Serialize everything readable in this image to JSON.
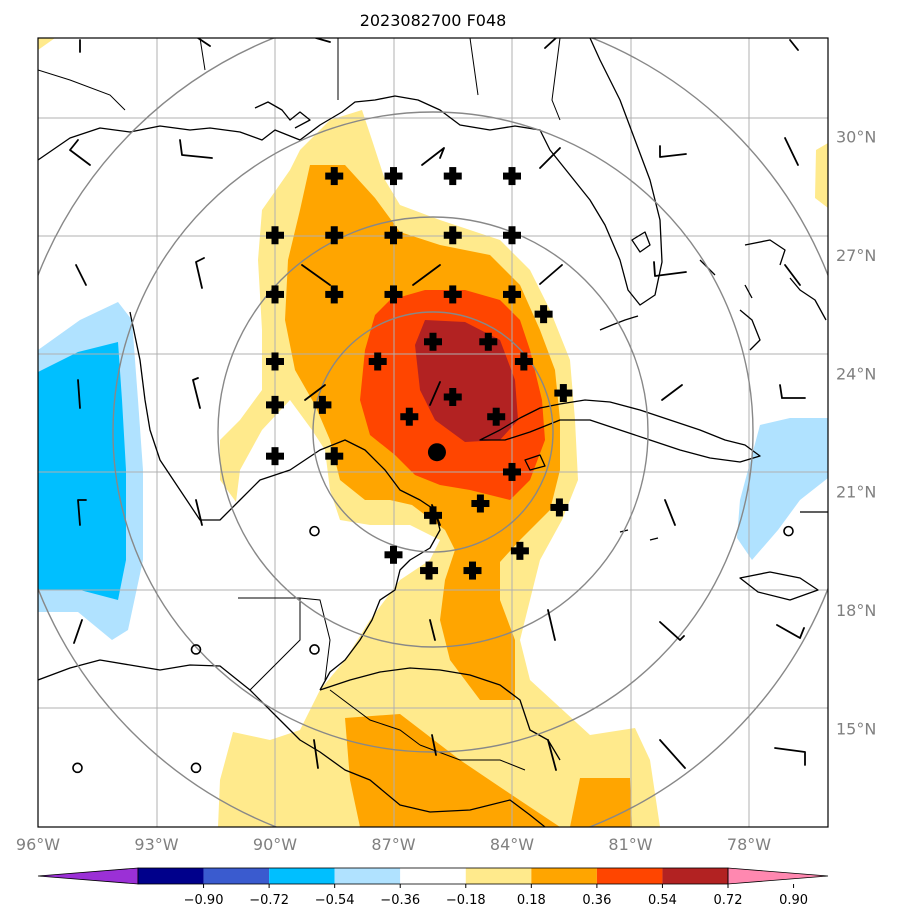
{
  "title": "2023082700 F048",
  "map": {
    "lon_range": [
      -96,
      -76
    ],
    "lat_range": [
      12.5,
      32.5
    ],
    "lon_ticks": [
      -96,
      -93,
      -90,
      -87,
      -84,
      -81,
      -78
    ],
    "lon_tick_labels": [
      "96°W",
      "93°W",
      "90°W",
      "87°W",
      "84°W",
      "81°W",
      "78°W"
    ],
    "lat_ticks": [
      15,
      18,
      21,
      24,
      27,
      30
    ],
    "lat_tick_labels": [
      "15°N",
      "18°N",
      "21°N",
      "24°N",
      "27°N",
      "30°N"
    ],
    "storm_center": {
      "lon": -85.9,
      "lat": 22.0
    },
    "significance_markers": [
      {
        "lon": -88.5,
        "lat": 29.0
      },
      {
        "lon": -87.0,
        "lat": 29.0
      },
      {
        "lon": -85.5,
        "lat": 29.0
      },
      {
        "lon": -84.0,
        "lat": 29.0
      },
      {
        "lon": -90.0,
        "lat": 27.5
      },
      {
        "lon": -88.5,
        "lat": 27.5
      },
      {
        "lon": -87.0,
        "lat": 27.5
      },
      {
        "lon": -85.5,
        "lat": 27.5
      },
      {
        "lon": -84.0,
        "lat": 27.5
      },
      {
        "lon": -90.0,
        "lat": 26.0
      },
      {
        "lon": -88.5,
        "lat": 26.0
      },
      {
        "lon": -87.0,
        "lat": 26.0
      },
      {
        "lon": -85.5,
        "lat": 26.0
      },
      {
        "lon": -84.0,
        "lat": 26.0
      },
      {
        "lon": -83.2,
        "lat": 25.5
      },
      {
        "lon": -86.0,
        "lat": 24.8
      },
      {
        "lon": -84.6,
        "lat": 24.8
      },
      {
        "lon": -90.0,
        "lat": 24.3
      },
      {
        "lon": -87.4,
        "lat": 24.3
      },
      {
        "lon": -83.7,
        "lat": 24.3
      },
      {
        "lon": -85.5,
        "lat": 23.4
      },
      {
        "lon": -82.7,
        "lat": 23.5
      },
      {
        "lon": -90.0,
        "lat": 23.2
      },
      {
        "lon": -88.8,
        "lat": 23.2
      },
      {
        "lon": -86.6,
        "lat": 22.9
      },
      {
        "lon": -84.4,
        "lat": 22.9
      },
      {
        "lon": -90.0,
        "lat": 21.9
      },
      {
        "lon": -88.5,
        "lat": 21.9
      },
      {
        "lon": -84.0,
        "lat": 21.5
      },
      {
        "lon": -84.8,
        "lat": 20.7
      },
      {
        "lon": -82.8,
        "lat": 20.6
      },
      {
        "lon": -86.0,
        "lat": 20.4
      },
      {
        "lon": -83.8,
        "lat": 19.5
      },
      {
        "lon": -87.0,
        "lat": 19.4
      },
      {
        "lon": -86.1,
        "lat": 19.0
      },
      {
        "lon": -85.0,
        "lat": 19.0
      }
    ],
    "calm_markers": [
      {
        "lon": -89.0,
        "lat": 20.0
      },
      {
        "lon": -77.0,
        "lat": 20.0
      },
      {
        "lon": -92.0,
        "lat": 17.0
      },
      {
        "lon": -89.0,
        "lat": 17.0
      },
      {
        "lon": -95.0,
        "lat": 14.0
      },
      {
        "lon": -92.0,
        "lat": 14.0
      }
    ]
  },
  "colorbar": {
    "colors": [
      "#9b30d6",
      "#00008b",
      "#3a5bcf",
      "#00bfff",
      "#b0e2ff",
      "#ffffff",
      "#ffea8c",
      "#ffa500",
      "#ff4500",
      "#b22222",
      "#ff88b0"
    ],
    "tick_labels": [
      "−0.90",
      "−0.72",
      "−0.54",
      "−0.36",
      "−0.18",
      "0.18",
      "0.36",
      "0.54",
      "0.72",
      "0.90"
    ]
  }
}
